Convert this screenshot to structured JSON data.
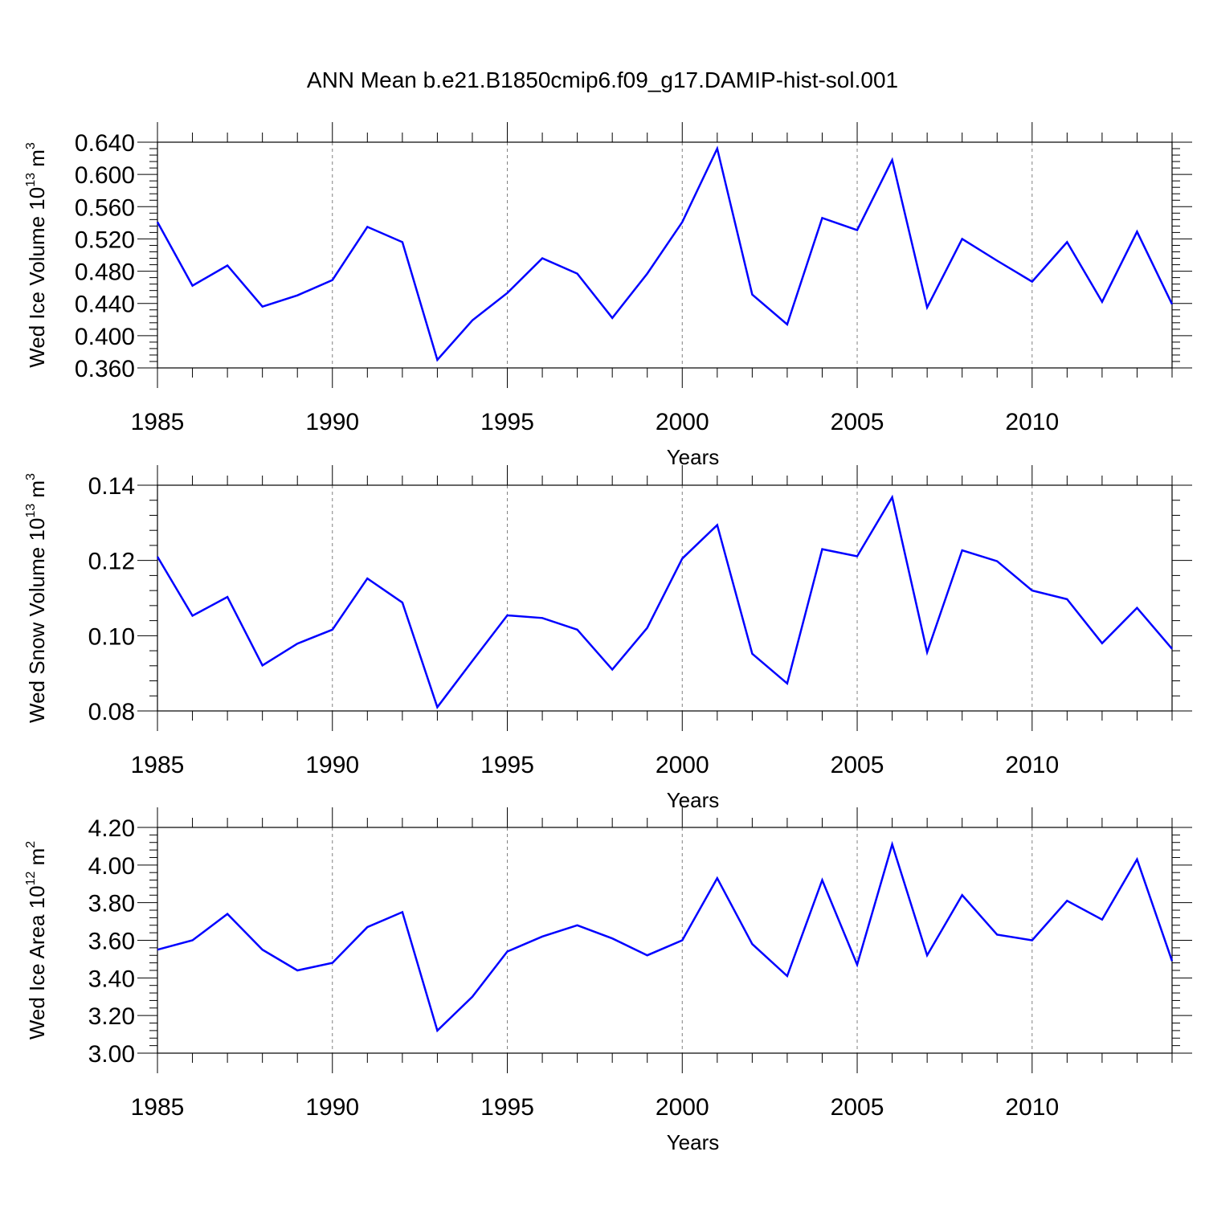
{
  "title": "ANN Mean b.e21.B1850cmip6.f09_g17.DAMIP-hist-sol.001",
  "colors": {
    "line": "#0000ff",
    "axis": "#000000",
    "grid": "#808080"
  },
  "chart_data": [
    {
      "type": "line",
      "ylabel": {
        "text": "Wed Ice Volume 10",
        "exp": "13",
        "unit": " m",
        "unit_exp": "3"
      },
      "xlabel": "Years",
      "xlim": [
        1985,
        2014
      ],
      "ylim": [
        0.36,
        0.64
      ],
      "yticks": [
        "0.360",
        "0.400",
        "0.440",
        "0.480",
        "0.520",
        "0.560",
        "0.600",
        "0.640"
      ],
      "xticks": [
        "1985",
        "1990",
        "1995",
        "2000",
        "2005",
        "2010"
      ],
      "grid": "vertical dashed at major x ticks",
      "x": [
        1985,
        1986,
        1987,
        1988,
        1989,
        1990,
        1991,
        1992,
        1993,
        1994,
        1995,
        1996,
        1997,
        1998,
        1999,
        2000,
        2001,
        2002,
        2003,
        2004,
        2005,
        2006,
        2007,
        2008,
        2009,
        2010,
        2011,
        2012,
        2013,
        2014
      ],
      "values": [
        0.541,
        0.462,
        0.487,
        0.436,
        0.45,
        0.469,
        0.535,
        0.516,
        0.37,
        0.419,
        0.453,
        0.496,
        0.477,
        0.422,
        0.477,
        0.541,
        0.632,
        0.451,
        0.414,
        0.546,
        0.531,
        0.618,
        0.435,
        0.52,
        0.493,
        0.467,
        0.516,
        0.442,
        0.529,
        0.439
      ]
    },
    {
      "type": "line",
      "ylabel": {
        "text": "Wed Snow Volume 10",
        "exp": "13",
        "unit": " m",
        "unit_exp": "3"
      },
      "xlabel": "Years",
      "xlim": [
        1985,
        2014
      ],
      "ylim": [
        0.08,
        0.14
      ],
      "yticks": [
        "0.08",
        "0.10",
        "0.12",
        "0.14"
      ],
      "xticks": [
        "1985",
        "1990",
        "1995",
        "2000",
        "2005",
        "2010"
      ],
      "grid": "vertical dashed at major x ticks",
      "x": [
        1985,
        1986,
        1987,
        1988,
        1989,
        1990,
        1991,
        1992,
        1993,
        1994,
        1995,
        1996,
        1997,
        1998,
        1999,
        2000,
        2001,
        2002,
        2003,
        2004,
        2005,
        2006,
        2007,
        2008,
        2009,
        2010,
        2011,
        2012,
        2013,
        2014
      ],
      "values": [
        0.121,
        0.1053,
        0.1103,
        0.0921,
        0.0979,
        0.1016,
        0.1152,
        0.1088,
        0.081,
        0.0933,
        0.1054,
        0.1047,
        0.1016,
        0.091,
        0.1021,
        0.1205,
        0.1294,
        0.0952,
        0.0873,
        0.123,
        0.1211,
        0.1368,
        0.0956,
        0.1227,
        0.1198,
        0.112,
        0.1097,
        0.098,
        0.1074,
        0.0965
      ]
    },
    {
      "type": "line",
      "ylabel": {
        "text": "Wed Ice Area 10",
        "exp": "12",
        "unit": " m",
        "unit_exp": "2"
      },
      "xlabel": "Years",
      "xlim": [
        1985,
        2014
      ],
      "ylim": [
        3.0,
        4.2
      ],
      "yticks": [
        "3.00",
        "3.20",
        "3.40",
        "3.60",
        "3.80",
        "4.00",
        "4.20"
      ],
      "xticks": [
        "1985",
        "1990",
        "1995",
        "2000",
        "2005",
        "2010"
      ],
      "grid": "vertical dashed at major x ticks",
      "x": [
        1985,
        1986,
        1987,
        1988,
        1989,
        1990,
        1991,
        1992,
        1993,
        1994,
        1995,
        1996,
        1997,
        1998,
        1999,
        2000,
        2001,
        2002,
        2003,
        2004,
        2005,
        2006,
        2007,
        2008,
        2009,
        2010,
        2011,
        2012,
        2013,
        2014
      ],
      "values": [
        3.55,
        3.6,
        3.74,
        3.55,
        3.44,
        3.48,
        3.67,
        3.75,
        3.12,
        3.3,
        3.54,
        3.62,
        3.68,
        3.61,
        3.52,
        3.6,
        3.93,
        3.58,
        3.41,
        3.92,
        3.47,
        4.11,
        3.52,
        3.84,
        3.63,
        3.6,
        3.81,
        3.71,
        4.03,
        3.49
      ]
    }
  ]
}
